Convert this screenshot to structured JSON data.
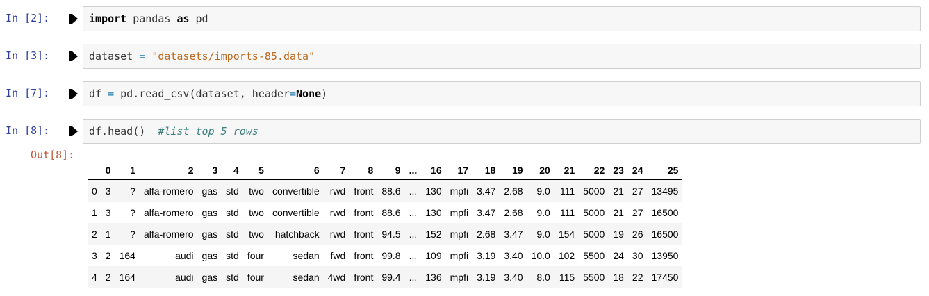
{
  "cells": [
    {
      "prompt": "In [2]:",
      "code": {
        "t1": "import",
        "t2": " pandas ",
        "t3": "as",
        "t4": " pd"
      }
    },
    {
      "prompt": "In [3]:",
      "code": {
        "t1": "dataset ",
        "t2": "=",
        "t3": " ",
        "t4": "\"datasets/imports-85.data\""
      }
    },
    {
      "prompt": "In [7]:",
      "code": {
        "t1": "df ",
        "t2": "=",
        "t3": " pd.read_csv(dataset, header",
        "t4": "=",
        "t5": "None",
        "t6": ")"
      }
    },
    {
      "prompt": "In [8]:",
      "code": {
        "t1": "df.head()  ",
        "t2": "#list top 5 rows"
      }
    }
  ],
  "output": {
    "prompt": "Out[8]:",
    "columns": [
      "",
      "0",
      "1",
      "2",
      "3",
      "4",
      "5",
      "6",
      "7",
      "8",
      "9",
      "...",
      "16",
      "17",
      "18",
      "19",
      "20",
      "21",
      "22",
      "23",
      "24",
      "25"
    ],
    "rows": [
      [
        "0",
        "3",
        "?",
        "alfa-romero",
        "gas",
        "std",
        "two",
        "convertible",
        "rwd",
        "front",
        "88.6",
        "...",
        "130",
        "mpfi",
        "3.47",
        "2.68",
        "9.0",
        "111",
        "5000",
        "21",
        "27",
        "13495"
      ],
      [
        "1",
        "3",
        "?",
        "alfa-romero",
        "gas",
        "std",
        "two",
        "convertible",
        "rwd",
        "front",
        "88.6",
        "...",
        "130",
        "mpfi",
        "3.47",
        "2.68",
        "9.0",
        "111",
        "5000",
        "21",
        "27",
        "16500"
      ],
      [
        "2",
        "1",
        "?",
        "alfa-romero",
        "gas",
        "std",
        "two",
        "hatchback",
        "rwd",
        "front",
        "94.5",
        "...",
        "152",
        "mpfi",
        "2.68",
        "3.47",
        "9.0",
        "154",
        "5000",
        "19",
        "26",
        "16500"
      ],
      [
        "3",
        "2",
        "164",
        "audi",
        "gas",
        "std",
        "four",
        "sedan",
        "fwd",
        "front",
        "99.8",
        "...",
        "109",
        "mpfi",
        "3.19",
        "3.40",
        "10.0",
        "102",
        "5500",
        "24",
        "30",
        "13950"
      ],
      [
        "4",
        "2",
        "164",
        "audi",
        "gas",
        "std",
        "four",
        "sedan",
        "4wd",
        "front",
        "99.4",
        "...",
        "136",
        "mpfi",
        "3.19",
        "3.40",
        "8.0",
        "115",
        "5500",
        "18",
        "22",
        "17450"
      ]
    ]
  },
  "icons": {
    "run": "run-cell-icon"
  },
  "colors": {
    "prompt_in": "#303f9f",
    "prompt_out": "#bf5b3d",
    "keyword": "#008000",
    "string": "#ba6a1f",
    "comment": "#408080"
  }
}
